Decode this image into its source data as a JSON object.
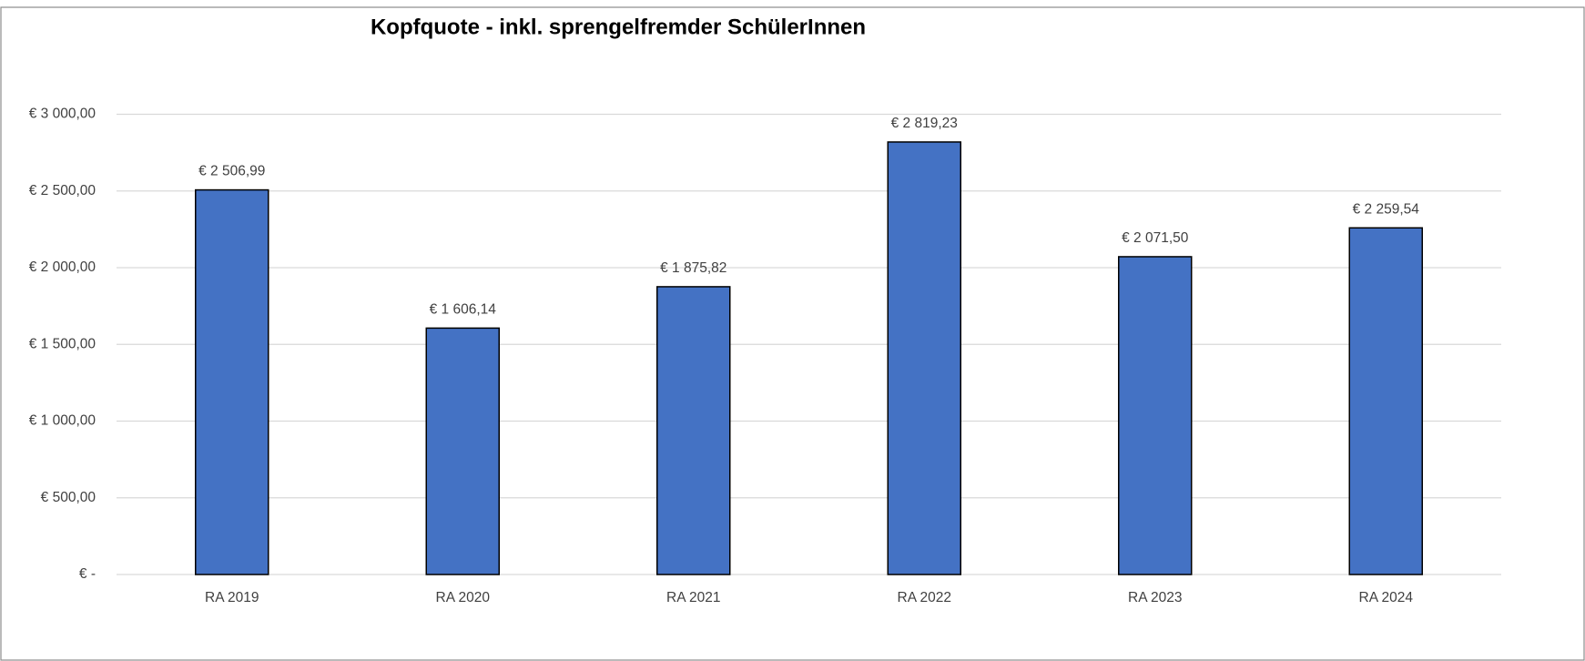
{
  "chart_data": {
    "type": "bar",
    "title": "Kopfquote  - inkl. sprengelfremder SchülerInnen",
    "categories": [
      "RA 2019",
      "RA 2020",
      "RA 2021",
      "RA 2022",
      "RA 2023",
      "RA 2024"
    ],
    "values": [
      2506.99,
      1606.14,
      1875.82,
      2819.23,
      2071.5,
      2259.54
    ],
    "value_labels": [
      "€ 2 506,99",
      "€ 1 606,14",
      "€ 1 875,82",
      "€ 2 819,23",
      "€ 2 071,50",
      "€ 2 259,54"
    ],
    "color": "#4472c4",
    "ylim": [
      0,
      3000
    ],
    "yticks": [
      {
        "value": 0,
        "label": "€ -"
      },
      {
        "value": 500,
        "label": "€ 500,00"
      },
      {
        "value": 1000,
        "label": "€ 1 000,00"
      },
      {
        "value": 1500,
        "label": "€ 1 500,00"
      },
      {
        "value": 2000,
        "label": "€ 2 000,00"
      },
      {
        "value": 2500,
        "label": "€ 2 500,00"
      },
      {
        "value": 3000,
        "label": "€ 3 000,00"
      }
    ],
    "grid": true
  }
}
